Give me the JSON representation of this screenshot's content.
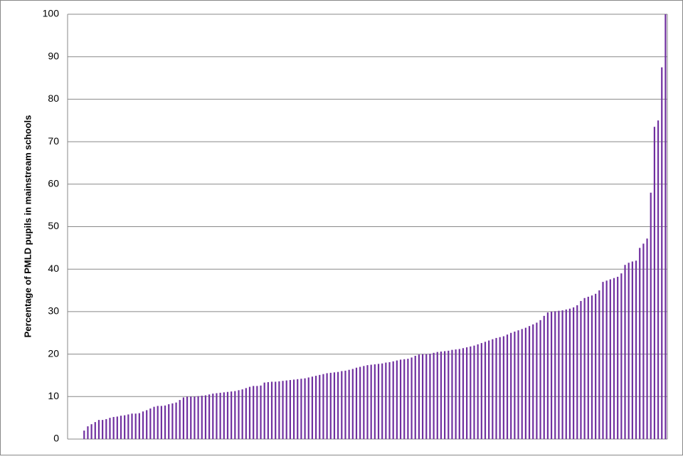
{
  "chart_data": {
    "type": "bar",
    "y_label": "Percentage of PMLD pupils  in mainstream schools",
    "categories": [
      null,
      null,
      null,
      null,
      null,
      null,
      null,
      null,
      null,
      null,
      null,
      null,
      null,
      null,
      null,
      null,
      null,
      null,
      null,
      null,
      null,
      null,
      null,
      null,
      null,
      null,
      null,
      null,
      null,
      null,
      null,
      null,
      null,
      null,
      null,
      null,
      null,
      null,
      null,
      null,
      null,
      null,
      null,
      null,
      null,
      null,
      null,
      null,
      null,
      null,
      null,
      null,
      null,
      null,
      null,
      null,
      null,
      null,
      null,
      null,
      null,
      null,
      null,
      null,
      null,
      null,
      null,
      null,
      null,
      null,
      null,
      null,
      null,
      null,
      null,
      null,
      null,
      null,
      null,
      null,
      null,
      null,
      null,
      null,
      null,
      null,
      null,
      null,
      null,
      null,
      null,
      null,
      null,
      null,
      null,
      null,
      null,
      null,
      null,
      null,
      null,
      null,
      null,
      null,
      null,
      null,
      null,
      null,
      null,
      null,
      null,
      null,
      null,
      null,
      null,
      null,
      null,
      null,
      null,
      null,
      null,
      null,
      null,
      null,
      null,
      null,
      null,
      null,
      null,
      null,
      null,
      null,
      null,
      null,
      null,
      null,
      null,
      null,
      null,
      null,
      null,
      null,
      null,
      null,
      null,
      null,
      null,
      null,
      null,
      null,
      null,
      null,
      null,
      null,
      null,
      null,
      null,
      null,
      null,
      null,
      null,
      null,
      null
    ],
    "values": [
      0,
      0,
      0,
      0,
      2,
      3,
      3.5,
      4,
      4.5,
      4.5,
      4.7,
      5,
      5.2,
      5.3,
      5.5,
      5.6,
      5.8,
      6,
      6,
      6.1,
      6.5,
      6.8,
      7.2,
      7.6,
      7.8,
      7.8,
      7.9,
      8.2,
      8.4,
      8.6,
      9.2,
      9.8,
      10,
      10,
      10,
      10.1,
      10.2,
      10.3,
      10.5,
      10.7,
      10.8,
      10.9,
      11,
      11.1,
      11.2,
      11.3,
      11.5,
      11.7,
      12,
      12.3,
      12.5,
      12.5,
      12.6,
      13.3,
      13.4,
      13.5,
      13.5,
      13.6,
      13.7,
      13.8,
      13.9,
      14,
      14.1,
      14.2,
      14.3,
      14.5,
      14.7,
      14.9,
      15.1,
      15.3,
      15.5,
      15.6,
      15.7,
      15.8,
      16,
      16.1,
      16.3,
      16.5,
      16.8,
      17,
      17.2,
      17.4,
      17.5,
      17.6,
      17.7,
      17.8,
      18,
      18.1,
      18.3,
      18.5,
      18.7,
      18.8,
      18.9,
      19.2,
      19.6,
      19.9,
      20,
      20,
      20.1,
      20.3,
      20.5,
      20.6,
      20.7,
      20.8,
      21,
      21.1,
      21.2,
      21.4,
      21.6,
      21.8,
      22,
      22.3,
      22.6,
      22.9,
      23.2,
      23.5,
      23.8,
      24,
      24.2,
      24.6,
      25,
      25.3,
      25.6,
      25.9,
      26.2,
      26.6,
      27,
      27.4,
      28,
      29,
      29.8,
      30,
      30.1,
      30.2,
      30.3,
      30.5,
      30.7,
      31,
      31.5,
      32.5,
      33.2,
      33.5,
      33.8,
      34.2,
      35,
      37,
      37.3,
      37.6,
      37.9,
      38.2,
      39,
      41,
      41.5,
      41.8,
      42,
      45,
      46,
      47.2,
      58,
      73.5,
      75,
      87.5,
      100
    ],
    "color": "#7030a0",
    "ylim": [
      0,
      100
    ],
    "yticks": [
      0,
      10,
      20,
      30,
      40,
      50,
      60,
      70,
      80,
      90,
      100
    ],
    "grid": true
  }
}
